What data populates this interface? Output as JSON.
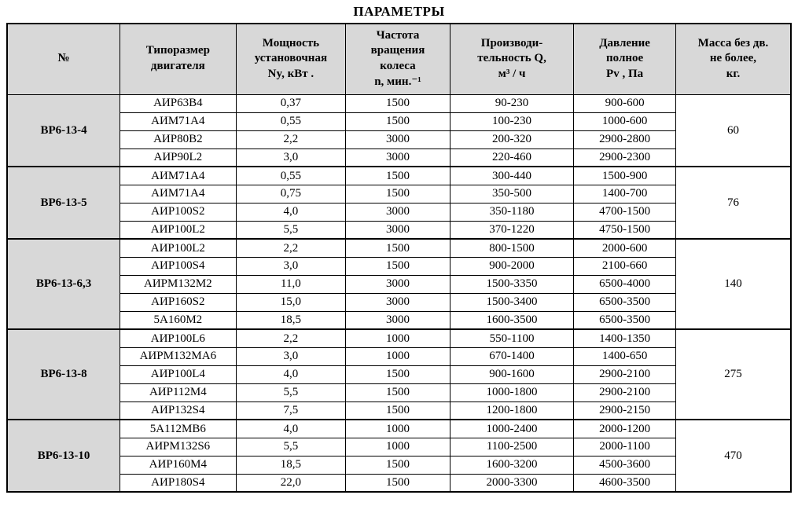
{
  "page_title": "ПАРАМЕТРЫ",
  "table": {
    "columns": [
      "№",
      "Типоразмер\nдвигателя",
      "Мощность\nустановочная\nNy, кВт .",
      "Частота\nвращения\nколеса\nn, мин.⁻¹",
      "Производи-\nтельность Q,\nм³ / ч",
      "Давление\nполное\nPv , Па",
      "Масса без дв.\nне более,\nкг."
    ],
    "row_field_names": [
      "motor-type",
      "power-kw",
      "speed-rpm",
      "capacity-m3h",
      "pressure-pa"
    ],
    "groups": [
      {
        "model": "ВР6-13-4",
        "mass": "60",
        "rows": [
          [
            "АИР63В4",
            "0,37",
            "1500",
            "90-230",
            "900-600"
          ],
          [
            "АИМ71А4",
            "0,55",
            "1500",
            "100-230",
            "1000-600"
          ],
          [
            "АИР80В2",
            "2,2",
            "3000",
            "200-320",
            "2900-2800"
          ],
          [
            "АИР90L2",
            "3,0",
            "3000",
            "220-460",
            "2900-2300"
          ]
        ]
      },
      {
        "model": "ВР6-13-5",
        "mass": "76",
        "rows": [
          [
            "АИМ71А4",
            "0,55",
            "1500",
            "300-440",
            "1500-900"
          ],
          [
            "АИМ71А4",
            "0,75",
            "1500",
            "350-500",
            "1400-700"
          ],
          [
            "АИР100S2",
            "4,0",
            "3000",
            "350-1180",
            "4700-1500"
          ],
          [
            "АИР100L2",
            "5,5",
            "3000",
            "370-1220",
            "4750-1500"
          ]
        ]
      },
      {
        "model": "ВР6-13-6,3",
        "mass": "140",
        "rows": [
          [
            "АИР100L2",
            "2,2",
            "1500",
            "800-1500",
            "2000-600"
          ],
          [
            "АИР100S4",
            "3,0",
            "1500",
            "900-2000",
            "2100-660"
          ],
          [
            "АИРМ132М2",
            "11,0",
            "3000",
            "1500-3350",
            "6500-4000"
          ],
          [
            "АИР160S2",
            "15,0",
            "3000",
            "1500-3400",
            "6500-3500"
          ],
          [
            "5А160М2",
            "18,5",
            "3000",
            "1600-3500",
            "6500-3500"
          ]
        ]
      },
      {
        "model": "ВР6-13-8",
        "mass": "275",
        "rows": [
          [
            "АИР100L6",
            "2,2",
            "1000",
            "550-1100",
            "1400-1350"
          ],
          [
            "АИРМ132МА6",
            "3,0",
            "1000",
            "670-1400",
            "1400-650"
          ],
          [
            "АИР100L4",
            "4,0",
            "1500",
            "900-1600",
            "2900-2100"
          ],
          [
            "АИР112М4",
            "5,5",
            "1500",
            "1000-1800",
            "2900-2100"
          ],
          [
            "АИР132S4",
            "7,5",
            "1500",
            "1200-1800",
            "2900-2150"
          ]
        ]
      },
      {
        "model": "ВР6-13-10",
        "mass": "470",
        "rows": [
          [
            "5А112МВ6",
            "4,0",
            "1000",
            "1000-2400",
            "2000-1200"
          ],
          [
            "АИРМ132S6",
            "5,5",
            "1000",
            "1100-2500",
            "2000-1100"
          ],
          [
            "АИР160М4",
            "18,5",
            "1500",
            "1600-3200",
            "4500-3600"
          ],
          [
            "АИР180S4",
            "22,0",
            "1500",
            "2000-3300",
            "4600-3500"
          ]
        ]
      }
    ]
  }
}
